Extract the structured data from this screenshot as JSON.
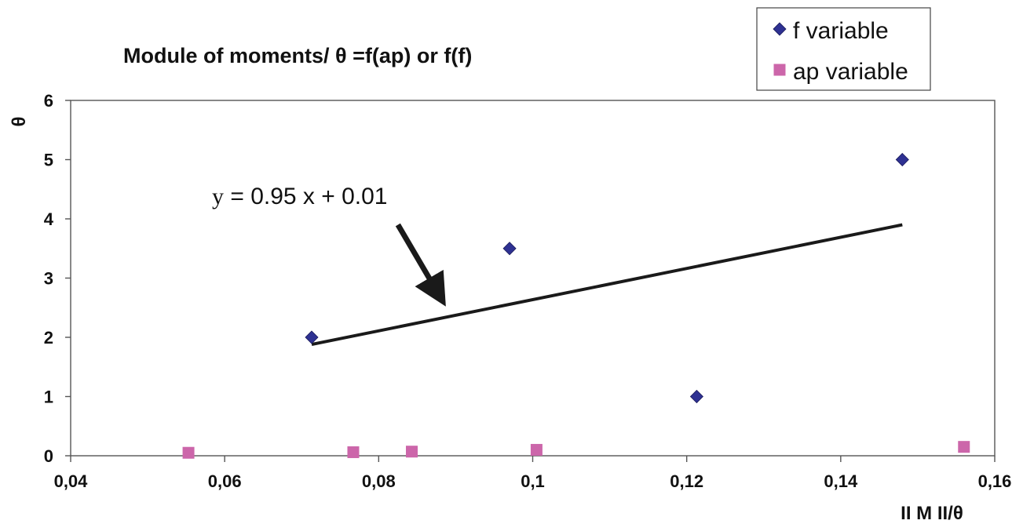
{
  "chart_data": {
    "type": "scatter",
    "title": "Module of moments/ θ =f(ap) or f(f)",
    "xlabel": "II M II/θ",
    "ylabel": "θ",
    "xlim": [
      0.04,
      0.16
    ],
    "ylim": [
      0,
      6
    ],
    "x_ticks": [
      "0,04",
      "0,06",
      "0,08",
      "0,1",
      "0,12",
      "0,14",
      "0,16"
    ],
    "x_tick_values": [
      0.04,
      0.06,
      0.08,
      0.1,
      0.12,
      0.14,
      0.16
    ],
    "y_ticks": [
      "0",
      "1",
      "2",
      "3",
      "4",
      "5",
      "6"
    ],
    "y_tick_values": [
      0,
      1,
      2,
      3,
      4,
      5,
      6
    ],
    "grid": false,
    "legend_position": "top-right",
    "series": [
      {
        "name": "f variable",
        "marker": "diamond",
        "color": "#2E3192",
        "points": [
          {
            "x": 0.0713,
            "y": 2
          },
          {
            "x": 0.097,
            "y": 3.5
          },
          {
            "x": 0.1213,
            "y": 1
          },
          {
            "x": 0.148,
            "y": 5
          }
        ]
      },
      {
        "name": "ap variable",
        "marker": "square",
        "color": "#CC66AA",
        "points": [
          {
            "x": 0.0553,
            "y": 0.05
          },
          {
            "x": 0.0767,
            "y": 0.06
          },
          {
            "x": 0.0843,
            "y": 0.07
          },
          {
            "x": 0.1005,
            "y": 0.1
          },
          {
            "x": 0.156,
            "y": 0.15
          }
        ]
      }
    ],
    "trendline": {
      "color": "#222222",
      "from": {
        "x": 0.0713,
        "y": 1.88
      },
      "to": {
        "x": 0.148,
        "y": 3.9
      }
    },
    "annotation": {
      "prefix": "y",
      "text": " = 0.95 x + 0.01",
      "arrow_from": {
        "x": 0.0825,
        "y": 3.9
      },
      "arrow_to": {
        "x": 0.088,
        "y": 2.68
      }
    }
  }
}
